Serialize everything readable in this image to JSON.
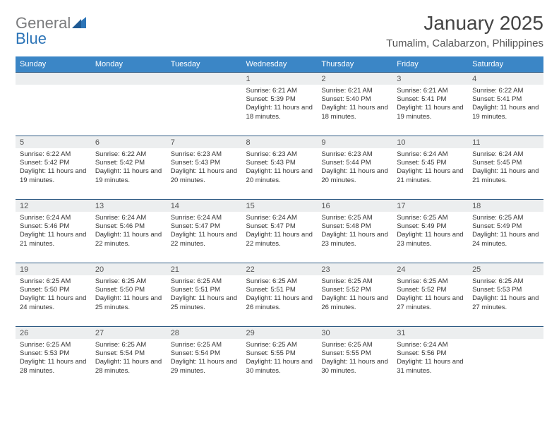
{
  "logo": {
    "word1": "General",
    "word2": "Blue"
  },
  "title": "January 2025",
  "location": "Tumalim, Calabarzon, Philippines",
  "colors": {
    "header_blue": "#3b86c6",
    "date_bg": "#eceeef",
    "date_border": "#2f5b84",
    "logo_gray": "#7b7c7e",
    "logo_blue": "#2c74b7",
    "background": "#ffffff"
  },
  "daynames": [
    "Sunday",
    "Monday",
    "Tuesday",
    "Wednesday",
    "Thursday",
    "Friday",
    "Saturday"
  ],
  "weeks": [
    [
      null,
      null,
      null,
      {
        "d": "1",
        "sr": "Sunrise: 6:21 AM",
        "ss": "Sunset: 5:39 PM",
        "dl": "Daylight: 11 hours and 18 minutes."
      },
      {
        "d": "2",
        "sr": "Sunrise: 6:21 AM",
        "ss": "Sunset: 5:40 PM",
        "dl": "Daylight: 11 hours and 18 minutes."
      },
      {
        "d": "3",
        "sr": "Sunrise: 6:21 AM",
        "ss": "Sunset: 5:41 PM",
        "dl": "Daylight: 11 hours and 19 minutes."
      },
      {
        "d": "4",
        "sr": "Sunrise: 6:22 AM",
        "ss": "Sunset: 5:41 PM",
        "dl": "Daylight: 11 hours and 19 minutes."
      }
    ],
    [
      {
        "d": "5",
        "sr": "Sunrise: 6:22 AM",
        "ss": "Sunset: 5:42 PM",
        "dl": "Daylight: 11 hours and 19 minutes."
      },
      {
        "d": "6",
        "sr": "Sunrise: 6:22 AM",
        "ss": "Sunset: 5:42 PM",
        "dl": "Daylight: 11 hours and 19 minutes."
      },
      {
        "d": "7",
        "sr": "Sunrise: 6:23 AM",
        "ss": "Sunset: 5:43 PM",
        "dl": "Daylight: 11 hours and 20 minutes."
      },
      {
        "d": "8",
        "sr": "Sunrise: 6:23 AM",
        "ss": "Sunset: 5:43 PM",
        "dl": "Daylight: 11 hours and 20 minutes."
      },
      {
        "d": "9",
        "sr": "Sunrise: 6:23 AM",
        "ss": "Sunset: 5:44 PM",
        "dl": "Daylight: 11 hours and 20 minutes."
      },
      {
        "d": "10",
        "sr": "Sunrise: 6:24 AM",
        "ss": "Sunset: 5:45 PM",
        "dl": "Daylight: 11 hours and 21 minutes."
      },
      {
        "d": "11",
        "sr": "Sunrise: 6:24 AM",
        "ss": "Sunset: 5:45 PM",
        "dl": "Daylight: 11 hours and 21 minutes."
      }
    ],
    [
      {
        "d": "12",
        "sr": "Sunrise: 6:24 AM",
        "ss": "Sunset: 5:46 PM",
        "dl": "Daylight: 11 hours and 21 minutes."
      },
      {
        "d": "13",
        "sr": "Sunrise: 6:24 AM",
        "ss": "Sunset: 5:46 PM",
        "dl": "Daylight: 11 hours and 22 minutes."
      },
      {
        "d": "14",
        "sr": "Sunrise: 6:24 AM",
        "ss": "Sunset: 5:47 PM",
        "dl": "Daylight: 11 hours and 22 minutes."
      },
      {
        "d": "15",
        "sr": "Sunrise: 6:24 AM",
        "ss": "Sunset: 5:47 PM",
        "dl": "Daylight: 11 hours and 22 minutes."
      },
      {
        "d": "16",
        "sr": "Sunrise: 6:25 AM",
        "ss": "Sunset: 5:48 PM",
        "dl": "Daylight: 11 hours and 23 minutes."
      },
      {
        "d": "17",
        "sr": "Sunrise: 6:25 AM",
        "ss": "Sunset: 5:49 PM",
        "dl": "Daylight: 11 hours and 23 minutes."
      },
      {
        "d": "18",
        "sr": "Sunrise: 6:25 AM",
        "ss": "Sunset: 5:49 PM",
        "dl": "Daylight: 11 hours and 24 minutes."
      }
    ],
    [
      {
        "d": "19",
        "sr": "Sunrise: 6:25 AM",
        "ss": "Sunset: 5:50 PM",
        "dl": "Daylight: 11 hours and 24 minutes."
      },
      {
        "d": "20",
        "sr": "Sunrise: 6:25 AM",
        "ss": "Sunset: 5:50 PM",
        "dl": "Daylight: 11 hours and 25 minutes."
      },
      {
        "d": "21",
        "sr": "Sunrise: 6:25 AM",
        "ss": "Sunset: 5:51 PM",
        "dl": "Daylight: 11 hours and 25 minutes."
      },
      {
        "d": "22",
        "sr": "Sunrise: 6:25 AM",
        "ss": "Sunset: 5:51 PM",
        "dl": "Daylight: 11 hours and 26 minutes."
      },
      {
        "d": "23",
        "sr": "Sunrise: 6:25 AM",
        "ss": "Sunset: 5:52 PM",
        "dl": "Daylight: 11 hours and 26 minutes."
      },
      {
        "d": "24",
        "sr": "Sunrise: 6:25 AM",
        "ss": "Sunset: 5:52 PM",
        "dl": "Daylight: 11 hours and 27 minutes."
      },
      {
        "d": "25",
        "sr": "Sunrise: 6:25 AM",
        "ss": "Sunset: 5:53 PM",
        "dl": "Daylight: 11 hours and 27 minutes."
      }
    ],
    [
      {
        "d": "26",
        "sr": "Sunrise: 6:25 AM",
        "ss": "Sunset: 5:53 PM",
        "dl": "Daylight: 11 hours and 28 minutes."
      },
      {
        "d": "27",
        "sr": "Sunrise: 6:25 AM",
        "ss": "Sunset: 5:54 PM",
        "dl": "Daylight: 11 hours and 28 minutes."
      },
      {
        "d": "28",
        "sr": "Sunrise: 6:25 AM",
        "ss": "Sunset: 5:54 PM",
        "dl": "Daylight: 11 hours and 29 minutes."
      },
      {
        "d": "29",
        "sr": "Sunrise: 6:25 AM",
        "ss": "Sunset: 5:55 PM",
        "dl": "Daylight: 11 hours and 30 minutes."
      },
      {
        "d": "30",
        "sr": "Sunrise: 6:25 AM",
        "ss": "Sunset: 5:55 PM",
        "dl": "Daylight: 11 hours and 30 minutes."
      },
      {
        "d": "31",
        "sr": "Sunrise: 6:24 AM",
        "ss": "Sunset: 5:56 PM",
        "dl": "Daylight: 11 hours and 31 minutes."
      },
      null
    ]
  ]
}
